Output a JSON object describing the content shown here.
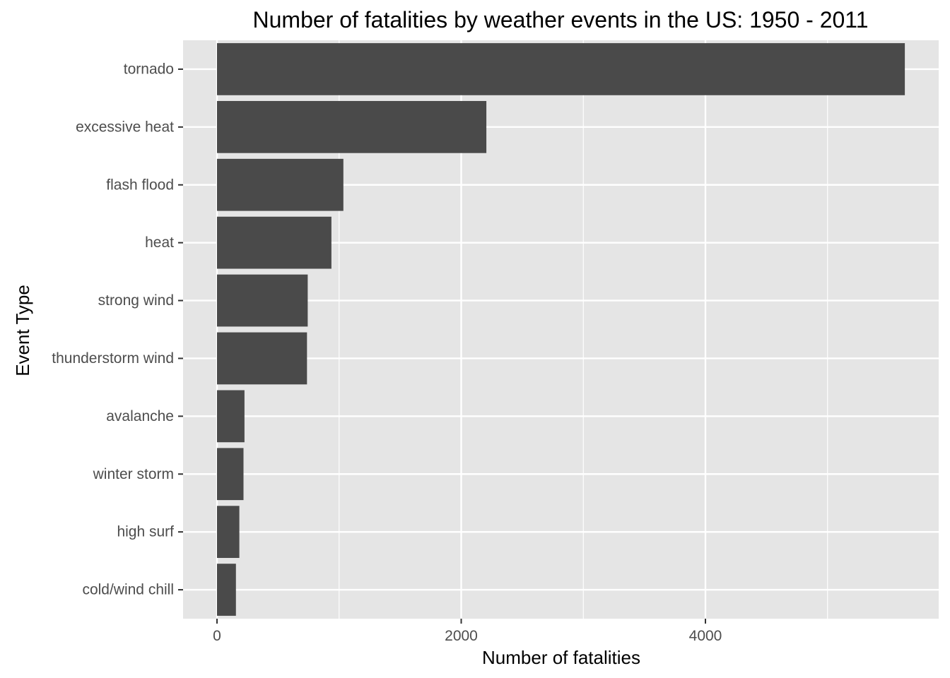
{
  "chart_data": {
    "type": "bar",
    "orientation": "horizontal",
    "title": "Number of fatalities by weather events in the US: 1950 - 2011",
    "xlabel": "Number of fatalities",
    "ylabel": "Event Type",
    "categories": [
      "tornado",
      "excessive heat",
      "flash flood",
      "heat",
      "strong wind",
      "thunderstorm wind",
      "avalanche",
      "winter storm",
      "high surf",
      "cold/wind chill"
    ],
    "values": [
      5633,
      2206,
      1035,
      937,
      743,
      737,
      225,
      217,
      183,
      155
    ],
    "x_ticks": [
      0,
      2000,
      4000
    ],
    "x_tick_labels": [
      "0",
      "2000",
      "4000"
    ],
    "xlim": [
      -280,
      5913
    ],
    "grid": true,
    "legend": "none",
    "colors": {
      "bar": "#4a4a4a",
      "panel": "#e5e5e5",
      "grid": "#ffffff",
      "tick_text": "#4d4d4d"
    }
  }
}
